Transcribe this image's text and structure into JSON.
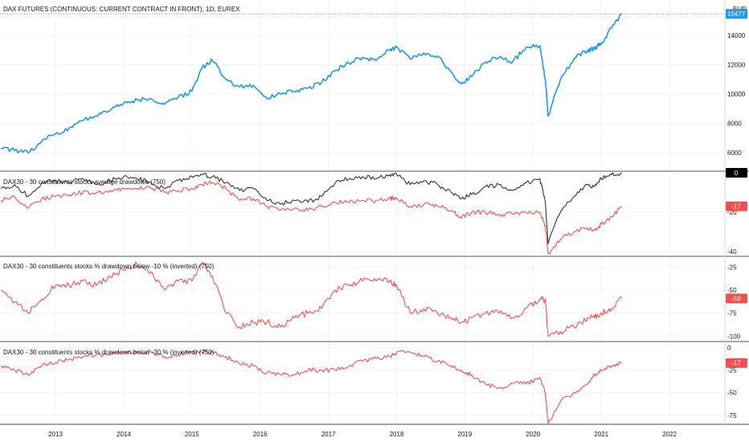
{
  "panes": [
    {
      "title": "DAX FUTURES (CONTINUOUS: CURRENT CONTRACT IN FRONT), 1D, EUREX",
      "currency": "EUR",
      "last_value": "15477",
      "ticks": [
        "14000",
        "12000",
        "10000",
        "8000",
        "6000"
      ]
    },
    {
      "title": "DAX30 - 30 constituents stocks average drawdown (750)",
      "badges": [
        "0",
        "-17"
      ],
      "ticks": [
        "-20",
        "-40"
      ]
    },
    {
      "title": "DAX30 - 30 constituents stocks % drawdown below -10 % (inverted) (750)",
      "badges": [
        "-59"
      ],
      "ticks": [
        "-25",
        "-50",
        "-75",
        "-100"
      ]
    },
    {
      "title": "DAX30 - 30 constituents stocks % drawdown below -30 % (inverted) (750)",
      "badges": [
        "-17"
      ],
      "ticks": [
        "0",
        "-25",
        "-50",
        "-75"
      ]
    }
  ],
  "x_axis": {
    "labels": [
      "2013",
      "2014",
      "2015",
      "2016",
      "2017",
      "2018",
      "2019",
      "2020",
      "2021",
      "2022"
    ]
  },
  "colors": {
    "blue": "#2196f3",
    "red": "#f2504f",
    "dark": "#333333",
    "black_badge": "#000000",
    "grid": "#f0f3fa"
  },
  "chart_data": [
    {
      "type": "line",
      "title": "DAX FUTURES (CONTINUOUS: CURRENT CONTRACT IN FRONT), 1D, EUREX",
      "ylabel": "EUR",
      "ylim": [
        4800,
        16200
      ],
      "x": [
        2012.2,
        2012.4,
        2012.6,
        2012.8,
        2013.0,
        2013.2,
        2013.4,
        2013.6,
        2013.8,
        2014.0,
        2014.2,
        2014.4,
        2014.6,
        2014.8,
        2015.0,
        2015.15,
        2015.3,
        2015.5,
        2015.7,
        2015.9,
        2016.1,
        2016.3,
        2016.5,
        2016.7,
        2016.9,
        2017.1,
        2017.3,
        2017.5,
        2017.7,
        2017.9,
        2018.0,
        2018.2,
        2018.4,
        2018.6,
        2018.8,
        2018.95,
        2019.1,
        2019.3,
        2019.5,
        2019.7,
        2019.9,
        2020.1,
        2020.18,
        2020.22,
        2020.4,
        2020.6,
        2020.8,
        2020.9,
        2021.0,
        2021.15,
        2021.3
      ],
      "series": [
        {
          "values": [
            6300,
            6150,
            6000,
            6800,
            7300,
            7700,
            8200,
            8500,
            8900,
            9400,
            9600,
            9700,
            9300,
            9800,
            10200,
            11800,
            12300,
            11000,
            10500,
            10600,
            9700,
            10000,
            10200,
            10400,
            10800,
            11600,
            12100,
            12500,
            12300,
            13000,
            13200,
            12400,
            12800,
            12600,
            11500,
            10700,
            11200,
            12200,
            12500,
            12200,
            13200,
            13300,
            11000,
            8500,
            11000,
            12400,
            13000,
            13100,
            13500,
            14500,
            15477
          ]
        }
      ]
    },
    {
      "type": "line",
      "title": "DAX30 - 30 constituents stocks average drawdown (750)",
      "ylim": [
        -42,
        0
      ],
      "x": [
        2012.2,
        2012.4,
        2012.6,
        2012.8,
        2013.0,
        2013.2,
        2013.4,
        2013.6,
        2013.8,
        2014.0,
        2014.2,
        2014.4,
        2014.6,
        2014.8,
        2015.0,
        2015.15,
        2015.3,
        2015.5,
        2015.7,
        2015.9,
        2016.1,
        2016.3,
        2016.5,
        2016.7,
        2016.9,
        2017.1,
        2017.3,
        2017.5,
        2017.7,
        2017.9,
        2018.0,
        2018.2,
        2018.4,
        2018.6,
        2018.8,
        2018.95,
        2019.1,
        2019.3,
        2019.5,
        2019.7,
        2019.9,
        2020.1,
        2020.18,
        2020.22,
        2020.4,
        2020.6,
        2020.8,
        2020.9,
        2021.0,
        2021.15,
        2021.3
      ],
      "series": [
        {
          "values": [
            -8,
            -6,
            -12,
            -5,
            -4,
            -5,
            -3,
            -6,
            -4,
            -2,
            -3,
            -5,
            -8,
            -4,
            -2,
            -1,
            -2,
            -5,
            -9,
            -8,
            -14,
            -16,
            -14,
            -15,
            -12,
            -5,
            -3,
            -2,
            -3,
            -1,
            -1,
            -6,
            -4,
            -6,
            -10,
            -13,
            -11,
            -7,
            -6,
            -9,
            -5,
            -3,
            -15,
            -36,
            -20,
            -12,
            -6,
            -7,
            -3,
            -1,
            0
          ]
        },
        {
          "values": [
            -14,
            -12,
            -18,
            -13,
            -12,
            -11,
            -10,
            -10,
            -9,
            -8,
            -8,
            -8,
            -10,
            -9,
            -8,
            -6,
            -5,
            -8,
            -14,
            -13,
            -17,
            -19,
            -18,
            -19,
            -17,
            -15,
            -15,
            -14,
            -14,
            -13,
            -13,
            -17,
            -16,
            -17,
            -19,
            -23,
            -20,
            -20,
            -21,
            -21,
            -20,
            -20,
            -27,
            -41,
            -34,
            -30,
            -28,
            -29,
            -26,
            -22,
            -17
          ]
        }
      ]
    },
    {
      "type": "line",
      "title": "DAX30 - 30 constituents stocks % drawdown below -10 % (inverted) (750)",
      "ylim": [
        -105,
        -15
      ],
      "x": [
        2012.2,
        2012.4,
        2012.6,
        2012.8,
        2013.0,
        2013.2,
        2013.4,
        2013.6,
        2013.8,
        2014.0,
        2014.2,
        2014.4,
        2014.6,
        2014.8,
        2015.0,
        2015.15,
        2015.3,
        2015.5,
        2015.7,
        2015.9,
        2016.1,
        2016.3,
        2016.5,
        2016.7,
        2016.9,
        2017.1,
        2017.3,
        2017.5,
        2017.7,
        2017.9,
        2018.0,
        2018.2,
        2018.4,
        2018.6,
        2018.8,
        2018.95,
        2019.1,
        2019.3,
        2019.5,
        2019.7,
        2019.9,
        2020.1,
        2020.18,
        2020.22,
        2020.4,
        2020.6,
        2020.8,
        2020.9,
        2021.0,
        2021.15,
        2021.3
      ],
      "series": [
        {
          "values": [
            -50,
            -63,
            -75,
            -60,
            -45,
            -45,
            -40,
            -45,
            -35,
            -28,
            -22,
            -30,
            -50,
            -40,
            -40,
            -20,
            -35,
            -75,
            -90,
            -85,
            -85,
            -90,
            -80,
            -75,
            -70,
            -50,
            -45,
            -40,
            -40,
            -40,
            -45,
            -75,
            -70,
            -75,
            -80,
            -85,
            -80,
            -75,
            -75,
            -80,
            -70,
            -60,
            -60,
            -100,
            -95,
            -90,
            -80,
            -80,
            -75,
            -70,
            -59
          ]
        }
      ]
    },
    {
      "type": "line",
      "title": "DAX30 - 30 constituents stocks % drawdown below -30 % (inverted) (750)",
      "ylim": [
        -85,
        5
      ],
      "x": [
        2012.2,
        2012.4,
        2012.6,
        2012.8,
        2013.0,
        2013.2,
        2013.4,
        2013.6,
        2013.8,
        2014.0,
        2014.2,
        2014.4,
        2014.6,
        2014.8,
        2015.0,
        2015.15,
        2015.3,
        2015.5,
        2015.7,
        2015.9,
        2016.1,
        2016.3,
        2016.5,
        2016.7,
        2016.9,
        2017.1,
        2017.3,
        2017.5,
        2017.7,
        2017.9,
        2018.0,
        2018.2,
        2018.4,
        2018.6,
        2018.8,
        2018.95,
        2019.1,
        2019.3,
        2019.5,
        2019.7,
        2019.9,
        2020.1,
        2020.18,
        2020.22,
        2020.4,
        2020.6,
        2020.8,
        2020.9,
        2021.0,
        2021.15,
        2021.3
      ],
      "series": [
        {
          "values": [
            -20,
            -25,
            -30,
            -20,
            -17,
            -13,
            -10,
            -8,
            -8,
            -5,
            -5,
            -5,
            -10,
            -8,
            -5,
            -5,
            -5,
            -10,
            -18,
            -20,
            -28,
            -30,
            -30,
            -25,
            -25,
            -25,
            -20,
            -15,
            -12,
            -10,
            -5,
            -5,
            -10,
            -15,
            -20,
            -25,
            -30,
            -40,
            -45,
            -40,
            -40,
            -33,
            -50,
            -84,
            -60,
            -50,
            -40,
            -30,
            -25,
            -20,
            -17
          ]
        }
      ]
    }
  ]
}
